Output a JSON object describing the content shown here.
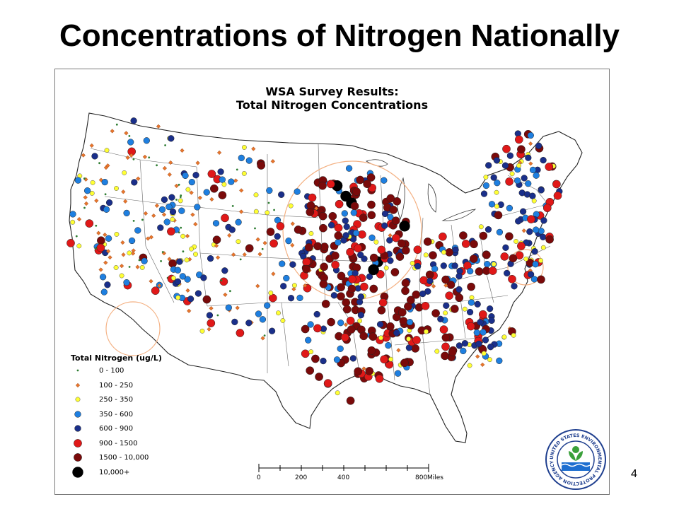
{
  "slide": {
    "title": "Concentrations of Nitrogen Nationally",
    "page_number": "4"
  },
  "map": {
    "title_line1": "WSA Survey Results:",
    "title_line2": "Total Nitrogen Concentrations",
    "legend": {
      "title": "Total Nitrogen (ug/L)",
      "items": [
        {
          "label": "0 - 100",
          "color": "#2e7d32",
          "shape": "dot-tiny"
        },
        {
          "label": "100 - 250",
          "color": "#e8762c",
          "shape": "diamond"
        },
        {
          "label": "250 - 350",
          "color": "#ffff33",
          "shape": "circle-small"
        },
        {
          "label": "350 - 600",
          "color": "#1e7fe0",
          "shape": "circle"
        },
        {
          "label": "600 - 900",
          "color": "#1a2f8a",
          "shape": "circle"
        },
        {
          "label": "900 - 1500",
          "color": "#e01818",
          "shape": "circle-large"
        },
        {
          "label": "1500 - 10,000",
          "color": "#7a0a0a",
          "shape": "circle-large"
        },
        {
          "label": "10,000+",
          "color": "#000000",
          "shape": "circle-xlarge"
        }
      ]
    },
    "scale": {
      "ticks": [
        "0",
        "200",
        "400",
        "800"
      ],
      "unit": "Miles"
    },
    "seal": {
      "text": "UNITED STATES ENVIRONMENTAL PROTECTION AGENCY",
      "icon": "epa-seal-icon"
    },
    "highlight_color": "#f4b183"
  }
}
